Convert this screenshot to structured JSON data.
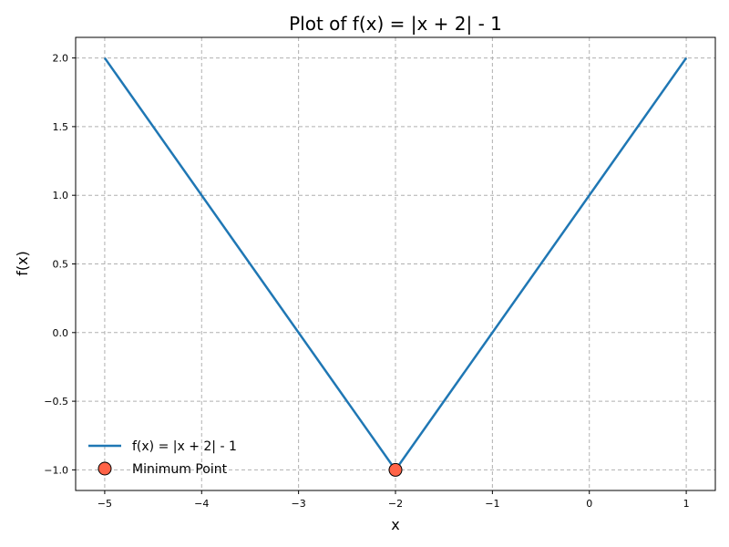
{
  "chart_data": {
    "type": "line",
    "title": "Plot of f(x) = |x + 2| - 1",
    "xlabel": "x",
    "ylabel": "f(x)",
    "xlim": [
      -5.3,
      1.3
    ],
    "ylim": [
      -1.15,
      2.15
    ],
    "x_ticks": [
      -5,
      -4,
      -3,
      -2,
      -1,
      0,
      1
    ],
    "x_tick_labels": [
      "−5",
      "−4",
      "−3",
      "−2",
      "−1",
      "0",
      "1"
    ],
    "y_ticks": [
      -1.0,
      -0.5,
      0.0,
      0.5,
      1.0,
      1.5,
      2.0
    ],
    "y_tick_labels": [
      "−1.0",
      "−0.5",
      "0.0",
      "0.5",
      "1.0",
      "1.5",
      "2.0"
    ],
    "grid": true,
    "legend_position": "lower-left",
    "series": [
      {
        "name": "f(x) = |x + 2| - 1",
        "kind": "line",
        "color": "#1f77b4",
        "x": [
          -5,
          -2,
          1
        ],
        "y": [
          2,
          -1,
          2
        ]
      },
      {
        "name": "Minimum Point",
        "kind": "scatter",
        "color": "#ff6347",
        "x": [
          -2
        ],
        "y": [
          -1
        ]
      }
    ]
  }
}
